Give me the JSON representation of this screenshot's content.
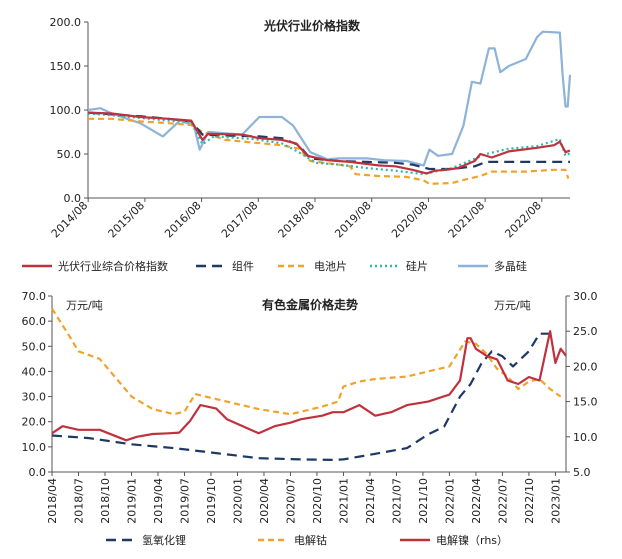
{
  "chart_data": [
    {
      "type": "line",
      "title": "光伏行业价格指数",
      "xlabel": "",
      "ylabel": "",
      "ylim": [
        0,
        200
      ],
      "yticks": [
        "0.0",
        "50.0",
        "100.0",
        "150.0",
        "200.0"
      ],
      "x_tick_labels": [
        "2014/08",
        "2015/08",
        "2016/08",
        "2017/08",
        "2018/08",
        "2019/08",
        "2020/08",
        "2021/08",
        "2022/08"
      ],
      "grid": false,
      "legend": "bottom",
      "x_range": [
        2014.58,
        2023.08
      ],
      "series": [
        {
          "name": "光伏行业综合价格指数",
          "color": "#c0313e",
          "dash": "solid",
          "points": [
            [
              2014.58,
              97
            ],
            [
              2015.0,
              96
            ],
            [
              2015.5,
              92
            ],
            [
              2016.0,
              90
            ],
            [
              2016.4,
              88
            ],
            [
              2016.6,
              66
            ],
            [
              2016.7,
              73
            ],
            [
              2017.3,
              72
            ],
            [
              2017.6,
              68
            ],
            [
              2018.0,
              66
            ],
            [
              2018.25,
              62
            ],
            [
              2018.45,
              48
            ],
            [
              2018.8,
              43
            ],
            [
              2019.2,
              41
            ],
            [
              2019.7,
              37
            ],
            [
              2020.0,
              36
            ],
            [
              2020.3,
              32
            ],
            [
              2020.55,
              28
            ],
            [
              2020.7,
              31
            ],
            [
              2020.9,
              32
            ],
            [
              2021.1,
              34
            ],
            [
              2021.4,
              42
            ],
            [
              2021.5,
              50
            ],
            [
              2021.7,
              46
            ],
            [
              2022.0,
              53
            ],
            [
              2022.5,
              57
            ],
            [
              2022.8,
              60
            ],
            [
              2022.9,
              64
            ],
            [
              2023.0,
              52
            ],
            [
              2023.08,
              54
            ]
          ]
        },
        {
          "name": "组件",
          "color": "#1f3864",
          "dash": "long",
          "points": [
            [
              2014.58,
              97
            ],
            [
              2015.0,
              95
            ],
            [
              2015.5,
              93
            ],
            [
              2016.0,
              90
            ],
            [
              2016.4,
              87
            ],
            [
              2016.6,
              72
            ],
            [
              2017.0,
              71
            ],
            [
              2017.6,
              70
            ],
            [
              2018.0,
              68
            ],
            [
              2018.3,
              60
            ],
            [
              2018.5,
              45
            ],
            [
              2019.0,
              42
            ],
            [
              2019.5,
              41
            ],
            [
              2020.0,
              40
            ],
            [
              2020.3,
              38
            ],
            [
              2020.6,
              33
            ],
            [
              2021.0,
              33
            ],
            [
              2021.4,
              36
            ],
            [
              2021.6,
              41
            ],
            [
              2022.0,
              41
            ],
            [
              2022.5,
              41
            ],
            [
              2023.08,
              41
            ]
          ]
        },
        {
          "name": "电池片",
          "color": "#f0a32a",
          "dash": "dash",
          "points": [
            [
              2014.58,
              90
            ],
            [
              2015.0,
              90
            ],
            [
              2015.5,
              87
            ],
            [
              2016.0,
              85
            ],
            [
              2016.4,
              83
            ],
            [
              2016.6,
              75
            ],
            [
              2017.0,
              66
            ],
            [
              2017.5,
              63
            ],
            [
              2018.0,
              60
            ],
            [
              2018.3,
              56
            ],
            [
              2018.5,
              42
            ],
            [
              2019.0,
              38
            ],
            [
              2019.2,
              36
            ],
            [
              2019.3,
              27
            ],
            [
              2019.7,
              25
            ],
            [
              2020.2,
              24
            ],
            [
              2020.5,
              20
            ],
            [
              2020.6,
              16
            ],
            [
              2021.0,
              17
            ],
            [
              2021.3,
              22
            ],
            [
              2021.5,
              25
            ],
            [
              2021.7,
              30
            ],
            [
              2022.3,
              30
            ],
            [
              2022.8,
              32
            ],
            [
              2023.0,
              32
            ],
            [
              2023.05,
              22
            ]
          ]
        },
        {
          "name": "硅片",
          "color": "#2ab7ae",
          "dash": "dot",
          "points": [
            [
              2014.58,
              96
            ],
            [
              2015.0,
              94
            ],
            [
              2015.5,
              91
            ],
            [
              2016.0,
              88
            ],
            [
              2016.4,
              86
            ],
            [
              2016.6,
              61
            ],
            [
              2016.8,
              70
            ],
            [
              2017.5,
              67
            ],
            [
              2018.0,
              62
            ],
            [
              2018.3,
              52
            ],
            [
              2018.6,
              40
            ],
            [
              2019.0,
              38
            ],
            [
              2019.5,
              34
            ],
            [
              2020.0,
              31
            ],
            [
              2020.5,
              27
            ],
            [
              2020.7,
              30
            ],
            [
              2021.0,
              34
            ],
            [
              2021.3,
              42
            ],
            [
              2021.6,
              50
            ],
            [
              2022.0,
              56
            ],
            [
              2022.5,
              59
            ],
            [
              2022.9,
              67
            ],
            [
              2023.0,
              48
            ],
            [
              2023.08,
              51
            ]
          ]
        },
        {
          "name": "多晶硅",
          "color": "#8db3d9",
          "dash": "solid",
          "points": [
            [
              2014.58,
              100
            ],
            [
              2014.8,
              102
            ],
            [
              2015.0,
              96
            ],
            [
              2015.5,
              85
            ],
            [
              2015.9,
              70
            ],
            [
              2016.2,
              88
            ],
            [
              2016.45,
              82
            ],
            [
              2016.55,
              55
            ],
            [
              2016.7,
              75
            ],
            [
              2017.3,
              72
            ],
            [
              2017.6,
              92
            ],
            [
              2018.0,
              92
            ],
            [
              2018.2,
              82
            ],
            [
              2018.5,
              52
            ],
            [
              2018.8,
              44
            ],
            [
              2019.0,
              45
            ],
            [
              2019.5,
              45
            ],
            [
              2019.8,
              43
            ],
            [
              2020.2,
              42
            ],
            [
              2020.5,
              37
            ],
            [
              2020.6,
              55
            ],
            [
              2020.75,
              48
            ],
            [
              2021.0,
              50
            ],
            [
              2021.2,
              82
            ],
            [
              2021.35,
              132
            ],
            [
              2021.5,
              130
            ],
            [
              2021.65,
              170
            ],
            [
              2021.75,
              170
            ],
            [
              2021.85,
              143
            ],
            [
              2022.0,
              150
            ],
            [
              2022.3,
              158
            ],
            [
              2022.5,
              183
            ],
            [
              2022.6,
              189
            ],
            [
              2022.9,
              188
            ],
            [
              2022.95,
              140
            ],
            [
              2023.0,
              104
            ],
            [
              2023.04,
              104
            ],
            [
              2023.08,
              140
            ]
          ]
        }
      ]
    },
    {
      "type": "line",
      "title": "有色金属价格走势",
      "ylabel_left": "万元/吨",
      "ylabel_right": "万元/吨",
      "ylim_left": [
        0,
        70
      ],
      "ylim_right": [
        5,
        30
      ],
      "yticks_left": [
        "0.0",
        "10.0",
        "20.0",
        "30.0",
        "40.0",
        "50.0",
        "60.0",
        "70.0"
      ],
      "yticks_right": [
        "5.0",
        "10.0",
        "15.0",
        "20.0",
        "25.0",
        "30.0"
      ],
      "x_tick_labels": [
        "2018/04",
        "2018/07",
        "2018/10",
        "2019/01",
        "2019/04",
        "2019/07",
        "2019/10",
        "2020/01",
        "2020/04",
        "2020/07",
        "2020/10",
        "2021/01",
        "2021/04",
        "2021/07",
        "2021/10",
        "2022/01",
        "2022/04",
        "2022/07",
        "2022/10",
        "2023/01"
      ],
      "grid": false,
      "legend": "bottom",
      "x_range": [
        2018.25,
        2023.1
      ],
      "series": [
        {
          "name": "氢氧化锂",
          "color": "#1f3864",
          "dash": "long",
          "axis": "left",
          "points": [
            [
              2018.25,
              14.5
            ],
            [
              2018.6,
              13.5
            ],
            [
              2019.0,
              11
            ],
            [
              2019.4,
              9.5
            ],
            [
              2019.8,
              7.5
            ],
            [
              2020.2,
              5.5
            ],
            [
              2020.6,
              5
            ],
            [
              2020.9,
              4.8
            ],
            [
              2021.0,
              5
            ],
            [
              2021.2,
              6.5
            ],
            [
              2021.4,
              8
            ],
            [
              2021.6,
              9.5
            ],
            [
              2021.8,
              15
            ],
            [
              2021.95,
              18
            ],
            [
              2022.1,
              30
            ],
            [
              2022.2,
              35
            ],
            [
              2022.3,
              43
            ],
            [
              2022.4,
              48
            ],
            [
              2022.5,
              46
            ],
            [
              2022.6,
              42
            ],
            [
              2022.75,
              48
            ],
            [
              2022.85,
              55
            ],
            [
              2023.0,
              55
            ]
          ]
        },
        {
          "name": "电解钴",
          "color": "#f0a32a",
          "dash": "dash",
          "axis": "left",
          "points": [
            [
              2018.25,
              65
            ],
            [
              2018.4,
              55
            ],
            [
              2018.5,
              48
            ],
            [
              2018.7,
              45
            ],
            [
              2018.9,
              35
            ],
            [
              2019.0,
              30
            ],
            [
              2019.2,
              25
            ],
            [
              2019.4,
              23
            ],
            [
              2019.5,
              24
            ],
            [
              2019.6,
              31
            ],
            [
              2019.9,
              28
            ],
            [
              2020.2,
              25
            ],
            [
              2020.5,
              23
            ],
            [
              2020.8,
              26
            ],
            [
              2020.95,
              28
            ],
            [
              2021.0,
              34
            ],
            [
              2021.15,
              36
            ],
            [
              2021.3,
              37
            ],
            [
              2021.6,
              38
            ],
            [
              2021.8,
              40
            ],
            [
              2022.0,
              42
            ],
            [
              2022.15,
              52
            ],
            [
              2022.25,
              51
            ],
            [
              2022.35,
              47
            ],
            [
              2022.45,
              41
            ],
            [
              2022.55,
              38
            ],
            [
              2022.65,
              33
            ],
            [
              2022.75,
              36
            ],
            [
              2022.85,
              37
            ],
            [
              2022.95,
              33
            ],
            [
              2023.05,
              30
            ]
          ]
        },
        {
          "name": "电解镍（rhs）",
          "color": "#c0313e",
          "dash": "solid",
          "axis": "right",
          "points": [
            [
              2018.25,
              10.5
            ],
            [
              2018.35,
              11.5
            ],
            [
              2018.5,
              11.0
            ],
            [
              2018.7,
              11.0
            ],
            [
              2018.95,
              9.5
            ],
            [
              2019.05,
              10.0
            ],
            [
              2019.2,
              10.4
            ],
            [
              2019.35,
              10.5
            ],
            [
              2019.45,
              10.6
            ],
            [
              2019.55,
              12.2
            ],
            [
              2019.65,
              14.5
            ],
            [
              2019.8,
              14.0
            ],
            [
              2019.9,
              12.5
            ],
            [
              2020.05,
              11.5
            ],
            [
              2020.2,
              10.5
            ],
            [
              2020.35,
              11.5
            ],
            [
              2020.5,
              12.0
            ],
            [
              2020.6,
              12.5
            ],
            [
              2020.8,
              13.0
            ],
            [
              2020.9,
              13.5
            ],
            [
              2021.0,
              13.5
            ],
            [
              2021.15,
              14.5
            ],
            [
              2021.3,
              13.0
            ],
            [
              2021.45,
              13.5
            ],
            [
              2021.6,
              14.5
            ],
            [
              2021.8,
              15.0
            ],
            [
              2022.0,
              16.0
            ],
            [
              2022.1,
              18.0
            ],
            [
              2022.17,
              24.0
            ],
            [
              2022.2,
              24.0
            ],
            [
              2022.25,
              22.5
            ],
            [
              2022.35,
              21.5
            ],
            [
              2022.45,
              21.0
            ],
            [
              2022.55,
              18.0
            ],
            [
              2022.65,
              17.5
            ],
            [
              2022.75,
              18.5
            ],
            [
              2022.85,
              18.0
            ],
            [
              2022.95,
              25.0
            ],
            [
              2023.0,
              20.5
            ],
            [
              2023.05,
              22.5
            ],
            [
              2023.1,
              21.5
            ]
          ]
        }
      ]
    }
  ]
}
